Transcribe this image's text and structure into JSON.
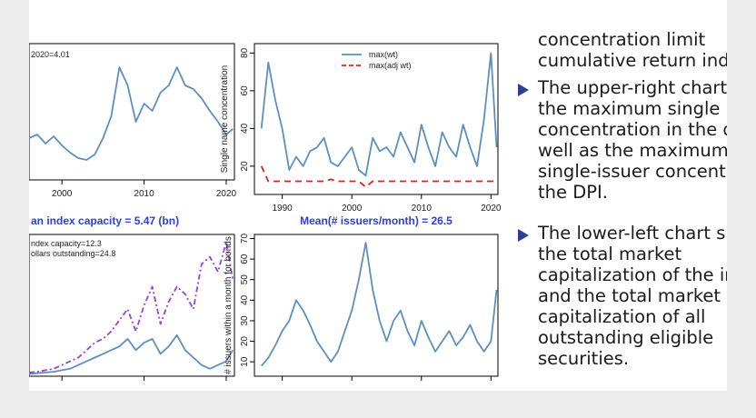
{
  "chart_data": [
    {
      "type": "line",
      "title": "",
      "annotation": "2020=4.01",
      "x": [
        1996,
        1997,
        1998,
        1999,
        2000,
        2001,
        2002,
        2003,
        2004,
        2005,
        2006,
        2007,
        2008,
        2009,
        2010,
        2011,
        2012,
        2013,
        2014,
        2015,
        2016,
        2017,
        2018,
        2019,
        2020,
        2020.8
      ],
      "series": [
        {
          "values": [
            33,
            35,
            30,
            34,
            29,
            25,
            22,
            21,
            24,
            33,
            45,
            72,
            62,
            42,
            52,
            48,
            58,
            62,
            72,
            62,
            60,
            55,
            48,
            42,
            35,
            38
          ]
        }
      ],
      "xticks": [
        "2000",
        "2010",
        "2020"
      ],
      "xlim": [
        1996,
        2021
      ],
      "ylim": [
        10,
        85
      ],
      "color": "#5b8fc4"
    },
    {
      "type": "line",
      "title": "",
      "ylabel": "Single name concentration",
      "x": [
        1987,
        1988,
        1989,
        1990,
        1991,
        1992,
        1993,
        1994,
        1995,
        1996,
        1997,
        1998,
        1999,
        2000,
        2001,
        2002,
        2003,
        2004,
        2005,
        2006,
        2007,
        2008,
        2009,
        2010,
        2011,
        2012,
        2013,
        2014,
        2015,
        2016,
        2017,
        2018,
        2019,
        2020,
        2020.8
      ],
      "series": [
        {
          "name": "max(wt)",
          "color": "#5b8fc4",
          "dash": "",
          "values": [
            40,
            75,
            55,
            40,
            18,
            25,
            20,
            28,
            30,
            35,
            22,
            20,
            25,
            30,
            18,
            15,
            35,
            28,
            30,
            25,
            38,
            30,
            22,
            42,
            30,
            20,
            38,
            30,
            25,
            42,
            30,
            20,
            45,
            80,
            30
          ]
        },
        {
          "name": "max(adj wt)",
          "color": "#e02020",
          "dash": "7,5",
          "values": [
            20,
            12,
            12,
            12,
            12,
            12,
            12,
            12,
            12,
            12,
            13,
            12,
            12,
            12,
            12,
            9,
            12,
            12,
            12,
            12,
            12,
            12,
            12,
            12,
            12,
            12,
            12,
            12,
            12,
            12,
            12,
            12,
            12,
            12,
            12
          ]
        }
      ],
      "xticks": [
        "1990",
        "2000",
        "2010",
        "2020"
      ],
      "yticks": [
        "20",
        "40",
        "60",
        "80"
      ],
      "xlim": [
        1986,
        2021
      ],
      "ylim": [
        5,
        85
      ]
    },
    {
      "type": "line",
      "title": "an index capacity = 5.47 (bn)",
      "annotations": [
        "ndex capacity=12.3",
        "ollars outstanding=24.8"
      ],
      "x": [
        1996,
        1997,
        1998,
        1999,
        2000,
        2001,
        2002,
        2003,
        2004,
        2005,
        2006,
        2007,
        2008,
        2009,
        2010,
        2011,
        2012,
        2013,
        2014,
        2015,
        2016,
        2017,
        2018,
        2019,
        2020,
        2020.8
      ],
      "series": [
        {
          "name": "index capacity",
          "color": "#5b8fc4",
          "dash": "",
          "values": [
            0.3,
            0.4,
            0.5,
            0.6,
            0.8,
            1.0,
            1.5,
            2.0,
            2.5,
            3.0,
            3.5,
            4.0,
            5.0,
            3.5,
            4.5,
            5.0,
            3.0,
            4.0,
            5.5,
            3.5,
            2.5,
            1.5,
            1.0,
            1.5,
            2.0,
            3.5
          ]
        },
        {
          "name": "dollars outstanding",
          "color": "#9a40d8",
          "dash": "6,3,2,3",
          "values": [
            0.5,
            0.6,
            0.8,
            1.0,
            1.5,
            2.0,
            2.5,
            3.5,
            4.5,
            5.0,
            6.0,
            7.5,
            9.0,
            6.0,
            9.5,
            12.0,
            7.0,
            10.0,
            12.0,
            11.0,
            9.0,
            15.0,
            16.0,
            14.0,
            18.0,
            13.0
          ]
        }
      ],
      "xlim": [
        1996,
        2021
      ],
      "ylim": [
        0,
        19
      ]
    },
    {
      "type": "line",
      "title": "Mean(# issuers/month) = 26.5",
      "ylabel": "# issuers within a month for bonds",
      "x": [
        1987,
        1988,
        1989,
        1990,
        1991,
        1992,
        1993,
        1994,
        1995,
        1996,
        1997,
        1998,
        1999,
        2000,
        2001,
        2002,
        2003,
        2004,
        2005,
        2006,
        2007,
        2008,
        2009,
        2010,
        2011,
        2012,
        2013,
        2014,
        2015,
        2016,
        2017,
        2018,
        2019,
        2020,
        2020.8
      ],
      "series": [
        {
          "color": "#5b8fc4",
          "values": [
            8,
            12,
            18,
            25,
            30,
            40,
            35,
            28,
            20,
            15,
            10,
            15,
            25,
            35,
            50,
            68,
            45,
            30,
            20,
            30,
            35,
            25,
            18,
            30,
            22,
            15,
            20,
            25,
            18,
            22,
            28,
            20,
            15,
            20,
            45
          ]
        }
      ],
      "yticks": [
        "10",
        "20",
        "30",
        "40",
        "50",
        "60",
        "70"
      ],
      "xlim": [
        1986,
        2021
      ],
      "ylim": [
        3,
        72
      ]
    }
  ],
  "bullets": {
    "top_lines": [
      "concentration limit",
      "cumulative return inde"
    ],
    "items": [
      {
        "lines": [
          "The upper-right chart",
          "the maximum single is",
          "concentration in the d",
          "well as the maximum",
          "single-issuer concentra",
          "the DPI."
        ]
      },
      {
        "lines": [
          "The lower-left chart sh",
          "the total market",
          "capitalization of the in",
          "and the total market",
          "capitalization of all",
          "outstanding eligible",
          "securities."
        ]
      }
    ]
  },
  "colors": {
    "bullet_marker": "#2f3d9a",
    "title_blue": "#2b3fe0"
  }
}
